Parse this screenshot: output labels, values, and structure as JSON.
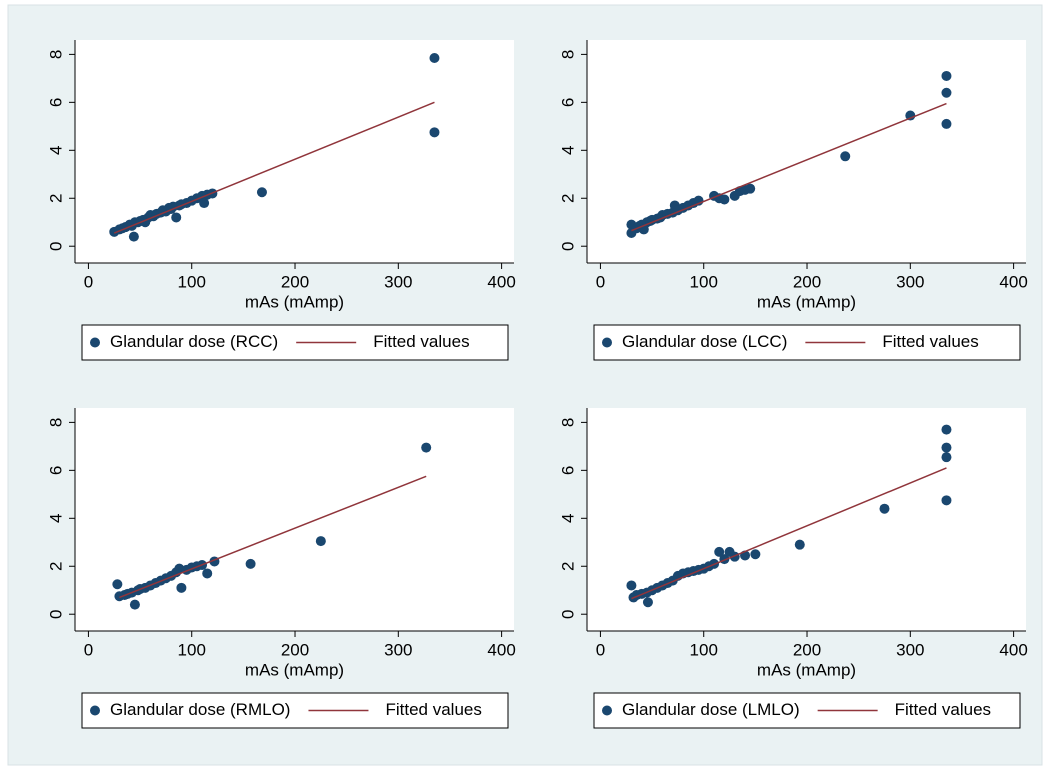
{
  "chart_data": [
    {
      "type": "scatter",
      "x_label": "mAs (mAmp)",
      "xlim": [
        -13,
        412
      ],
      "ylim": [
        -0.7,
        8.6
      ],
      "xticks": [
        0,
        100,
        200,
        300,
        400
      ],
      "yticks": [
        0,
        2,
        4,
        6,
        8
      ],
      "legend": "bottom",
      "series": [
        {
          "name": "Glandular dose (RCC)",
          "color": "#1a476f",
          "kind": "points",
          "x": [
            25,
            30,
            33,
            36,
            40,
            42,
            44,
            45,
            48,
            50,
            53,
            55,
            58,
            60,
            63,
            66,
            70,
            72,
            75,
            78,
            80,
            82,
            85,
            88,
            90,
            95,
            100,
            105,
            110,
            112,
            115,
            120,
            168,
            335,
            335
          ],
          "values": [
            0.6,
            0.7,
            0.75,
            0.8,
            0.9,
            0.85,
            0.4,
            1.0,
            1.0,
            1.05,
            1.1,
            1.0,
            1.2,
            1.3,
            1.25,
            1.35,
            1.4,
            1.5,
            1.45,
            1.6,
            1.55,
            1.65,
            1.2,
            1.7,
            1.75,
            1.8,
            1.9,
            2.0,
            2.1,
            1.8,
            2.15,
            2.2,
            2.25,
            7.85,
            4.75
          ]
        },
        {
          "name": "Fitted values",
          "color": "#90353b",
          "kind": "line",
          "x": [
            25,
            335
          ],
          "values": [
            0.55,
            6.0
          ]
        }
      ]
    },
    {
      "type": "scatter",
      "x_label": "mAs (mAmp)",
      "xlim": [
        -13,
        412
      ],
      "ylim": [
        -0.7,
        8.6
      ],
      "xticks": [
        0,
        100,
        200,
        300,
        400
      ],
      "yticks": [
        0,
        2,
        4,
        6,
        8
      ],
      "legend": "bottom",
      "series": [
        {
          "name": "Glandular dose (LCC)",
          "color": "#1a476f",
          "kind": "points",
          "x": [
            30,
            30,
            35,
            38,
            40,
            42,
            45,
            48,
            50,
            55,
            58,
            60,
            65,
            70,
            72,
            75,
            80,
            85,
            90,
            95,
            110,
            115,
            120,
            130,
            135,
            140,
            145,
            237,
            300,
            335,
            335,
            335
          ],
          "values": [
            0.9,
            0.55,
            0.75,
            0.85,
            0.9,
            0.7,
            1.0,
            1.05,
            1.1,
            1.15,
            1.2,
            1.3,
            1.35,
            1.4,
            1.7,
            1.5,
            1.6,
            1.7,
            1.8,
            1.9,
            2.1,
            2.0,
            1.95,
            2.1,
            2.3,
            2.35,
            2.4,
            3.75,
            5.45,
            7.1,
            6.4,
            5.1
          ]
        },
        {
          "name": "Fitted values",
          "color": "#90353b",
          "kind": "line",
          "x": [
            30,
            335
          ],
          "values": [
            0.65,
            5.95
          ]
        }
      ]
    },
    {
      "type": "scatter",
      "x_label": "mAs (mAmp)",
      "xlim": [
        -13,
        412
      ],
      "ylim": [
        -0.7,
        8.6
      ],
      "xticks": [
        0,
        100,
        200,
        300,
        400
      ],
      "yticks": [
        0,
        2,
        4,
        6,
        8
      ],
      "legend": "bottom",
      "series": [
        {
          "name": "Glandular dose (RMLO)",
          "color": "#1a476f",
          "kind": "points",
          "x": [
            28,
            30,
            35,
            38,
            42,
            45,
            48,
            50,
            55,
            60,
            65,
            70,
            75,
            80,
            85,
            88,
            90,
            95,
            100,
            105,
            110,
            115,
            122,
            157,
            225,
            327
          ],
          "values": [
            1.25,
            0.75,
            0.8,
            0.85,
            0.9,
            0.4,
            1.0,
            1.05,
            1.1,
            1.2,
            1.3,
            1.4,
            1.5,
            1.6,
            1.75,
            1.9,
            1.1,
            1.85,
            1.95,
            2.0,
            2.05,
            1.7,
            2.2,
            2.1,
            3.05,
            6.95
          ]
        },
        {
          "name": "Fitted values",
          "color": "#90353b",
          "kind": "line",
          "x": [
            30,
            327
          ],
          "values": [
            0.7,
            5.75
          ]
        }
      ]
    },
    {
      "type": "scatter",
      "x_label": "mAs (mAmp)",
      "xlim": [
        -13,
        412
      ],
      "ylim": [
        -0.7,
        8.6
      ],
      "xticks": [
        0,
        100,
        200,
        300,
        400
      ],
      "yticks": [
        0,
        2,
        4,
        6,
        8
      ],
      "legend": "bottom",
      "series": [
        {
          "name": "Glandular dose (LMLO)",
          "color": "#1a476f",
          "kind": "points",
          "x": [
            30,
            32,
            35,
            40,
            45,
            46,
            50,
            55,
            60,
            65,
            70,
            75,
            80,
            85,
            90,
            95,
            100,
            105,
            110,
            115,
            120,
            125,
            130,
            140,
            150,
            193,
            275,
            335,
            335,
            335,
            335
          ],
          "values": [
            1.2,
            0.7,
            0.8,
            0.85,
            0.9,
            0.5,
            1.0,
            1.1,
            1.2,
            1.3,
            1.4,
            1.6,
            1.7,
            1.75,
            1.8,
            1.85,
            1.9,
            2.0,
            2.1,
            2.6,
            2.3,
            2.6,
            2.4,
            2.45,
            2.5,
            2.9,
            4.4,
            7.7,
            6.95,
            6.55,
            4.75
          ]
        },
        {
          "name": "Fitted values",
          "color": "#90353b",
          "kind": "line",
          "x": [
            30,
            335
          ],
          "values": [
            0.65,
            6.1
          ]
        }
      ]
    }
  ]
}
